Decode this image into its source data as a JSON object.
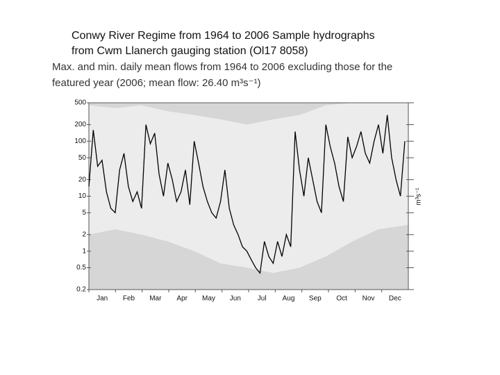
{
  "chart_data": {
    "type": "line",
    "heading": [
      "Conwy River Regime from 1964 to 2006 Sample hydrographs",
      "from Cwm Llanerch gauging station (Ol17 8058)"
    ],
    "title": [
      "Max. and min. daily mean flows from 1964 to 2006 excluding those for the",
      "featured year (2006; mean flow: 26.40 m³s⁻¹)"
    ],
    "y_label": "m³s⁻¹",
    "categories": [
      "Jan",
      "Feb",
      "Mar",
      "Apr",
      "May",
      "Jun",
      "Jul",
      "Aug",
      "Sep",
      "Oct",
      "Nov",
      "Dec"
    ],
    "log_y": true,
    "xlim": [
      1,
      365
    ],
    "ylim": [
      0.2,
      500
    ],
    "yticks": [
      500,
      200,
      100,
      50,
      20,
      10,
      5,
      2,
      1,
      0.5,
      0.2
    ],
    "band_x": [
      1,
      31,
      61,
      91,
      121,
      151,
      181,
      211,
      241,
      271,
      301,
      331,
      365
    ],
    "band_max": [
      450,
      400,
      450,
      350,
      300,
      250,
      200,
      250,
      300,
      450,
      500,
      500,
      500
    ],
    "band_min": [
      2,
      2.5,
      2,
      1.5,
      1,
      0.6,
      0.5,
      0.4,
      0.5,
      0.8,
      1.5,
      2.5,
      3
    ],
    "band_color": "#ececec",
    "background_color": "#d6d6d6",
    "x": [
      1,
      6,
      11,
      16,
      21,
      26,
      31,
      36,
      41,
      46,
      51,
      56,
      61,
      66,
      71,
      76,
      81,
      86,
      91,
      96,
      101,
      106,
      111,
      116,
      121,
      126,
      131,
      136,
      141,
      146,
      151,
      156,
      161,
      166,
      171,
      176,
      181,
      186,
      191,
      196,
      201,
      206,
      211,
      216,
      221,
      226,
      231,
      236,
      241,
      246,
      251,
      256,
      261,
      266,
      271,
      276,
      281,
      286,
      291,
      296,
      301,
      306,
      311,
      316,
      321,
      326,
      331,
      336,
      341,
      346,
      351,
      356,
      361
    ],
    "series": [
      {
        "color": "#000000",
        "values": [
          15,
          160,
          35,
          45,
          12,
          6,
          5,
          30,
          60,
          15,
          8,
          12,
          6,
          200,
          90,
          140,
          25,
          10,
          40,
          20,
          8,
          12,
          30,
          7,
          100,
          40,
          15,
          8,
          5,
          4,
          8,
          30,
          6,
          3,
          2,
          1.2,
          1,
          0.7,
          0.5,
          0.4,
          1.5,
          0.8,
          0.6,
          1.5,
          0.8,
          2,
          1.2,
          150,
          30,
          10,
          50,
          20,
          8,
          5,
          200,
          80,
          40,
          15,
          8,
          120,
          50,
          80,
          150,
          60,
          40,
          100,
          200,
          60,
          300,
          50,
          20,
          10,
          100
        ]
      }
    ]
  }
}
